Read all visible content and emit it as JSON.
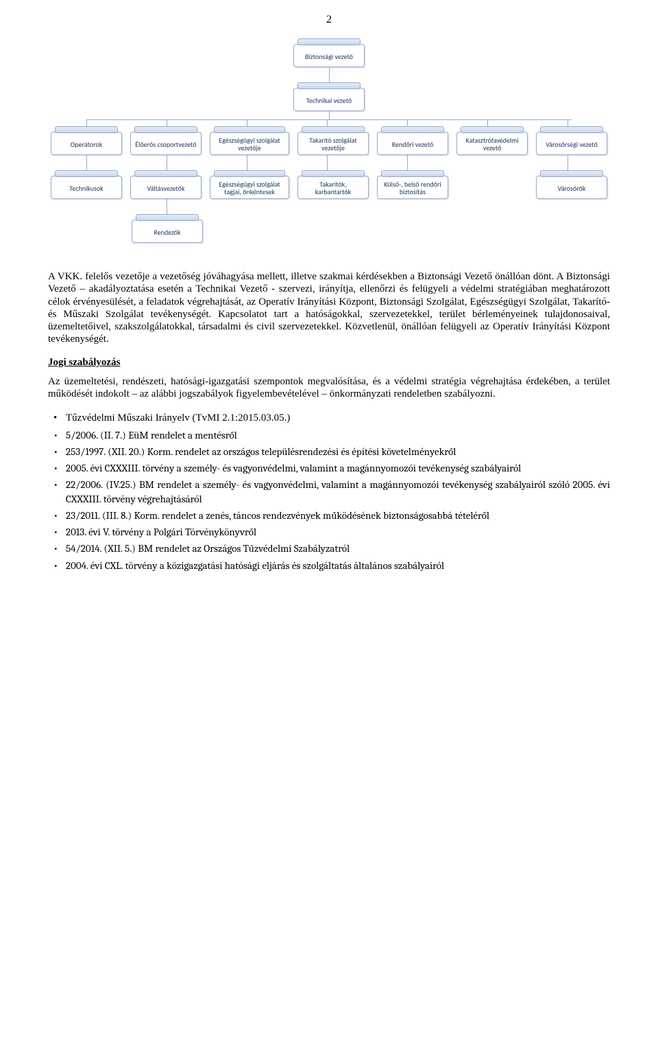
{
  "page_number": "2",
  "org": {
    "level1": "Biztonsági vezető",
    "level2": "Technikai vezető",
    "level3": [
      "Operátorok",
      "Élőerős csoportvezető",
      "Egészségügyi szolgálat vezetője",
      "Takarító szolgálat vezetője",
      "Rendőri vezető",
      "Katasztrófavédelmi vezető",
      "Városőrségi vezető"
    ],
    "level4": [
      "Technikusok",
      "Váltásvezetők",
      "Egészségügyi szolgálat tagjai, önkéntesek",
      "Takarítók, karbantartók",
      "Külső-, belső rendőri biztosítás",
      "",
      "Városőrök"
    ],
    "level5": "Rendezők"
  },
  "paragraph1": "A VKK. felelős vezetője a vezetőség jóváhagyása mellett, illetve szakmai kérdésekben a Biztonsági Vezető önállóan dönt.",
  "paragraph2": "A Biztonsági Vezető – akadályoztatása esetén a Technikai Vezető - szervezi, irányítja, ellenőrzi és felügyeli a védelmi stratégiában meghatározott célok érvényesülését, a feladatok végrehajtását, az Operatív Irányítási Központ, Biztonsági Szolgálat, Egészségügyi Szolgálat, Takarító- és Műszaki Szolgálat tevékenységét. Kapcsolatot tart a hatóságokkal, szervezetekkel, terület bérleményeinek tulajdonosaival, üzemeltetőivel, szakszolgálatokkal, társadalmi és civil szervezetekkel. Közvetlenül, önállóan felügyeli az Operatív Irányítási Központ tevékenységét.",
  "heading_jogi": "Jogi szabályozás",
  "paragraph3": "Az üzemeltetési, rendészeti, hatósági-igazgatási szempontok megvalósítása, és a védelmi stratégia végrehajtása érdekében, a terület működését indokolt – az alábbi jogszabályok figyelembevételével – önkormányzati rendeletben szabályozni.",
  "laws": [
    "Tűzvédelmi Műszaki Irányelv (TvMI 2.1:2015.03.05.)",
    "5/2006. (II. 7.) EüM rendelet a mentésről",
    "253/1997. (XII. 20.) Korm. rendelet az országos településrendezési és építési követelményekről",
    "2005. évi CXXXIII. törvény a személy- és vagyonvédelmi, valamint a magánnyomozói tevékenység szabályairól",
    "22/2006. (IV.25.) BM rendelet a személy- és vagyonvédelmi, valamint a magánnyomozói tevékenység szabályairól szóló 2005. évi CXXXIII. törvény végrehajtásáról",
    "23/2011. (III. 8.) Korm. rendelet a zenés, táncos rendezvények működésének biztonságosabbá tételéről",
    "2013. évi V. törvény a Polgári Törvénykönyvről",
    "54/2014. (XII. 5.) BM rendelet az Országos Tűzvédelmi Szabályzatról",
    "2004. évi CXL. törvény a közigazgatási hatósági eljárás és szolgáltatás általános szabályairól"
  ],
  "law_font_classes": [
    "",
    "cambria",
    "cambria",
    "cambria",
    "cambria",
    "cambria",
    "cambria",
    "cambria",
    "cambria"
  ],
  "colors": {
    "node_border": "#8fa9d0",
    "node_text": "#1f3864",
    "tab_gradient_top": "#e8eef7",
    "tab_gradient_bottom": "#c7d5ea"
  }
}
